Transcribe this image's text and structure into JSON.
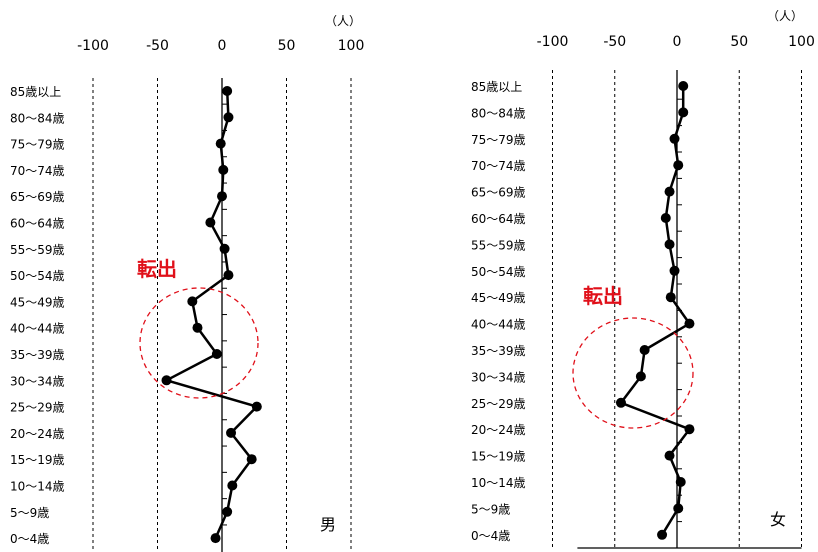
{
  "chart_data": [
    {
      "type": "line",
      "gender_label": "男",
      "unit": "（人）",
      "annotation": "転出",
      "xlim": [
        -100,
        100
      ],
      "x_ticks": [
        -100,
        -50,
        0,
        50,
        100
      ],
      "x_tick_labels": [
        "-100",
        "-50",
        "0",
        "50",
        "100"
      ],
      "grid": "dashed vertical",
      "categories": [
        "85歳以上",
        "80～84歳",
        "75～79歳",
        "70～74歳",
        "65～69歳",
        "60～64歳",
        "55～59歳",
        "50～54歳",
        "45～49歳",
        "40～44歳",
        "35～39歳",
        "30～34歳",
        "25～29歳",
        "20～24歳",
        "15～19歳",
        "10～14歳",
        "5～9歳",
        "0～4歳"
      ],
      "values": [
        4,
        5,
        -1,
        1,
        0,
        -9,
        2,
        5,
        -23,
        -19,
        -4,
        -43,
        27,
        7,
        23,
        8,
        4,
        -5
      ]
    },
    {
      "type": "line",
      "gender_label": "女",
      "unit": "（人）",
      "annotation": "転出",
      "xlim": [
        -100,
        100
      ],
      "x_ticks": [
        -100,
        -50,
        0,
        50,
        100
      ],
      "x_tick_labels": [
        "-100",
        "-50",
        "0",
        "50",
        "100"
      ],
      "grid": "dashed vertical",
      "categories": [
        "85歳以上",
        "80～84歳",
        "75～79歳",
        "70～74歳",
        "65～69歳",
        "60～64歳",
        "55～59歳",
        "50～54歳",
        "45～49歳",
        "40～44歳",
        "35～39歳",
        "30～34歳",
        "25～29歳",
        "20～24歳",
        "15～19歳",
        "10～14歳",
        "5～9歳",
        "0～4歳"
      ],
      "values": [
        5,
        5,
        -2,
        1,
        -6,
        -9,
        -6,
        -2,
        -5,
        10,
        -26,
        -29,
        -45,
        10,
        -6,
        3,
        1,
        -12
      ]
    }
  ]
}
